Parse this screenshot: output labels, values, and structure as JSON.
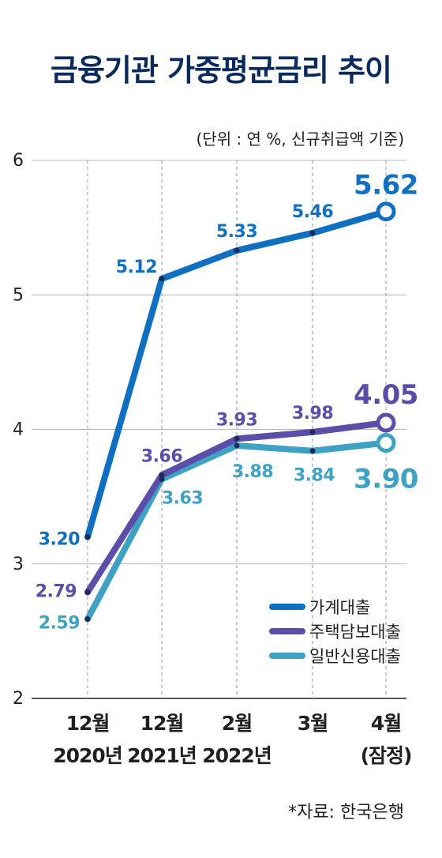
{
  "title": "금융기관 가중평균금리 추이",
  "unit_note": "(단위 : 연 %, 신규취급액 기준)",
  "source": "*자료: 한국은행",
  "chart_data": {
    "type": "line",
    "title": "금융기관 가중평균금리 추이",
    "categories": [
      [
        "12월",
        "2020년"
      ],
      [
        "12월",
        "2021년"
      ],
      [
        "2월",
        "2022년"
      ],
      [
        "3월",
        ""
      ],
      [
        "4월",
        "(잠정)"
      ]
    ],
    "y_ticks": [
      "2",
      "3",
      "4",
      "5",
      "6"
    ],
    "ylim": [
      2,
      6
    ],
    "grid": "vertical dashed at categories, horizontal solid at ticks",
    "legend_position": "bottom-right",
    "series": [
      {
        "name": "가계대출",
        "color": "#0f6fc0",
        "values": [
          3.2,
          5.12,
          5.33,
          5.46,
          5.62
        ],
        "labels": [
          "3.20",
          "5.12",
          "5.33",
          "5.46",
          "5.62"
        ]
      },
      {
        "name": "주택담보대출",
        "color": "#5b4ea8",
        "values": [
          2.79,
          3.66,
          3.93,
          3.98,
          4.05
        ],
        "labels": [
          "2.79",
          "3.66",
          "3.93",
          "3.98",
          "4.05"
        ]
      },
      {
        "name": "일반신용대출",
        "color": "#3ea2c4",
        "values": [
          2.59,
          3.63,
          3.88,
          3.84,
          3.9
        ],
        "labels": [
          "2.59",
          "3.63",
          "3.88",
          "3.84",
          "3.90"
        ]
      }
    ]
  }
}
